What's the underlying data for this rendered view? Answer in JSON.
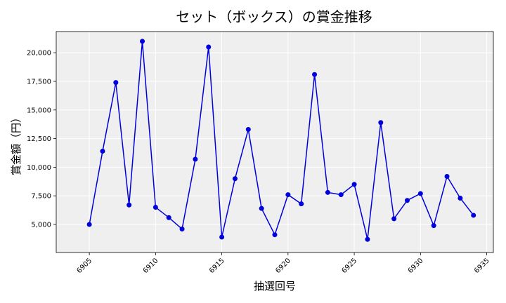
{
  "chart_data": {
    "type": "line",
    "title": "セット（ボックス）の賞金推移",
    "xlabel": "抽選回号",
    "ylabel": "賞金額（円）",
    "x": [
      6905,
      6906,
      6907,
      6908,
      6909,
      6910,
      6911,
      6912,
      6913,
      6914,
      6915,
      6916,
      6917,
      6918,
      6919,
      6920,
      6921,
      6922,
      6923,
      6924,
      6925,
      6926,
      6927,
      6928,
      6929,
      6930,
      6931,
      6932,
      6933,
      6934
    ],
    "series": [
      {
        "color": "#0000dd",
        "values": [
          5000,
          11400,
          17400,
          6700,
          21000,
          6500,
          5600,
          4600,
          10700,
          20500,
          3900,
          9000,
          13300,
          6400,
          4100,
          7600,
          6800,
          18100,
          7800,
          7600,
          8500,
          3700,
          13900,
          5500,
          7100,
          7700,
          4900,
          9200,
          7300,
          5800
        ]
      }
    ],
    "xticks": [
      "6905",
      "6910",
      "6915",
      "6920",
      "6925",
      "6930",
      "6935"
    ],
    "yticks": [
      "5,000",
      "7,500",
      "10,000",
      "12,500",
      "15,000",
      "17,500",
      "20,000"
    ],
    "xlim": [
      6902.5,
      6935.5
    ],
    "ylim": [
      2550,
      21850
    ],
    "grid": true,
    "background": "#efefef"
  }
}
